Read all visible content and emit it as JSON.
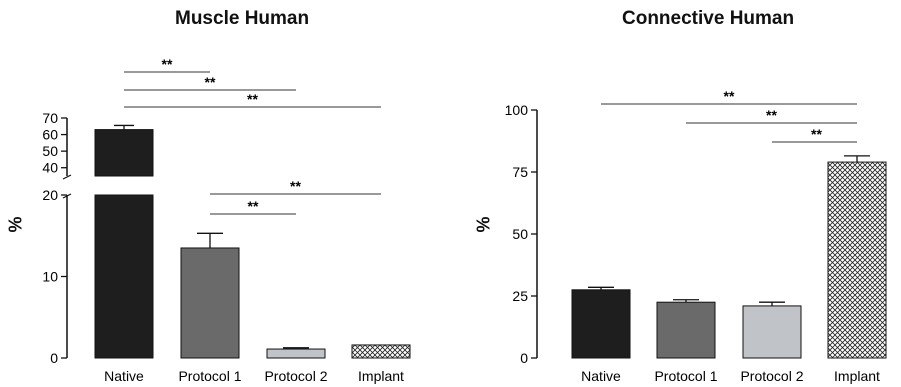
{
  "chart_data": [
    {
      "type": "bar",
      "title": "Muscle Human",
      "xlabel": "",
      "ylabel": "%",
      "categories": [
        "Native",
        "Protocol 1",
        "Protocol 2",
        "Implant"
      ],
      "values": [
        63,
        13.5,
        1.1,
        1.6
      ],
      "errors": [
        2.5,
        1.8,
        0.15,
        0
      ],
      "fills": [
        "#1e1e1e",
        "#6a6a6a",
        "#c0c4c8",
        "crosshatch"
      ],
      "y_axis_break": {
        "lower": [
          0,
          20
        ],
        "upper": [
          35,
          70
        ]
      },
      "yticks_lower": [
        0,
        10,
        20
      ],
      "yticks_upper": [
        40,
        50,
        60,
        70
      ],
      "significance": [
        {
          "from": 0,
          "to": 1,
          "label": "**"
        },
        {
          "from": 0,
          "to": 2,
          "label": "**"
        },
        {
          "from": 0,
          "to": 3,
          "label": "**"
        },
        {
          "from": 1,
          "to": 3,
          "label": "**"
        },
        {
          "from": 1,
          "to": 2,
          "label": "**"
        }
      ]
    },
    {
      "type": "bar",
      "title": "Connective Human",
      "xlabel": "",
      "ylabel": "%",
      "categories": [
        "Native",
        "Protocol 1",
        "Protocol 2",
        "Implant"
      ],
      "values": [
        27.5,
        22.5,
        21,
        79
      ],
      "errors": [
        1,
        1,
        1.5,
        2.5
      ],
      "fills": [
        "#1e1e1e",
        "#6a6a6a",
        "#c0c4c8",
        "crosshatch"
      ],
      "ylim": [
        0,
        100
      ],
      "yticks": [
        0,
        25,
        50,
        75,
        100
      ],
      "significance": [
        {
          "from": 0,
          "to": 3,
          "label": "**"
        },
        {
          "from": 1,
          "to": 3,
          "label": "**"
        },
        {
          "from": 2,
          "to": 3,
          "label": "**"
        }
      ]
    }
  ]
}
